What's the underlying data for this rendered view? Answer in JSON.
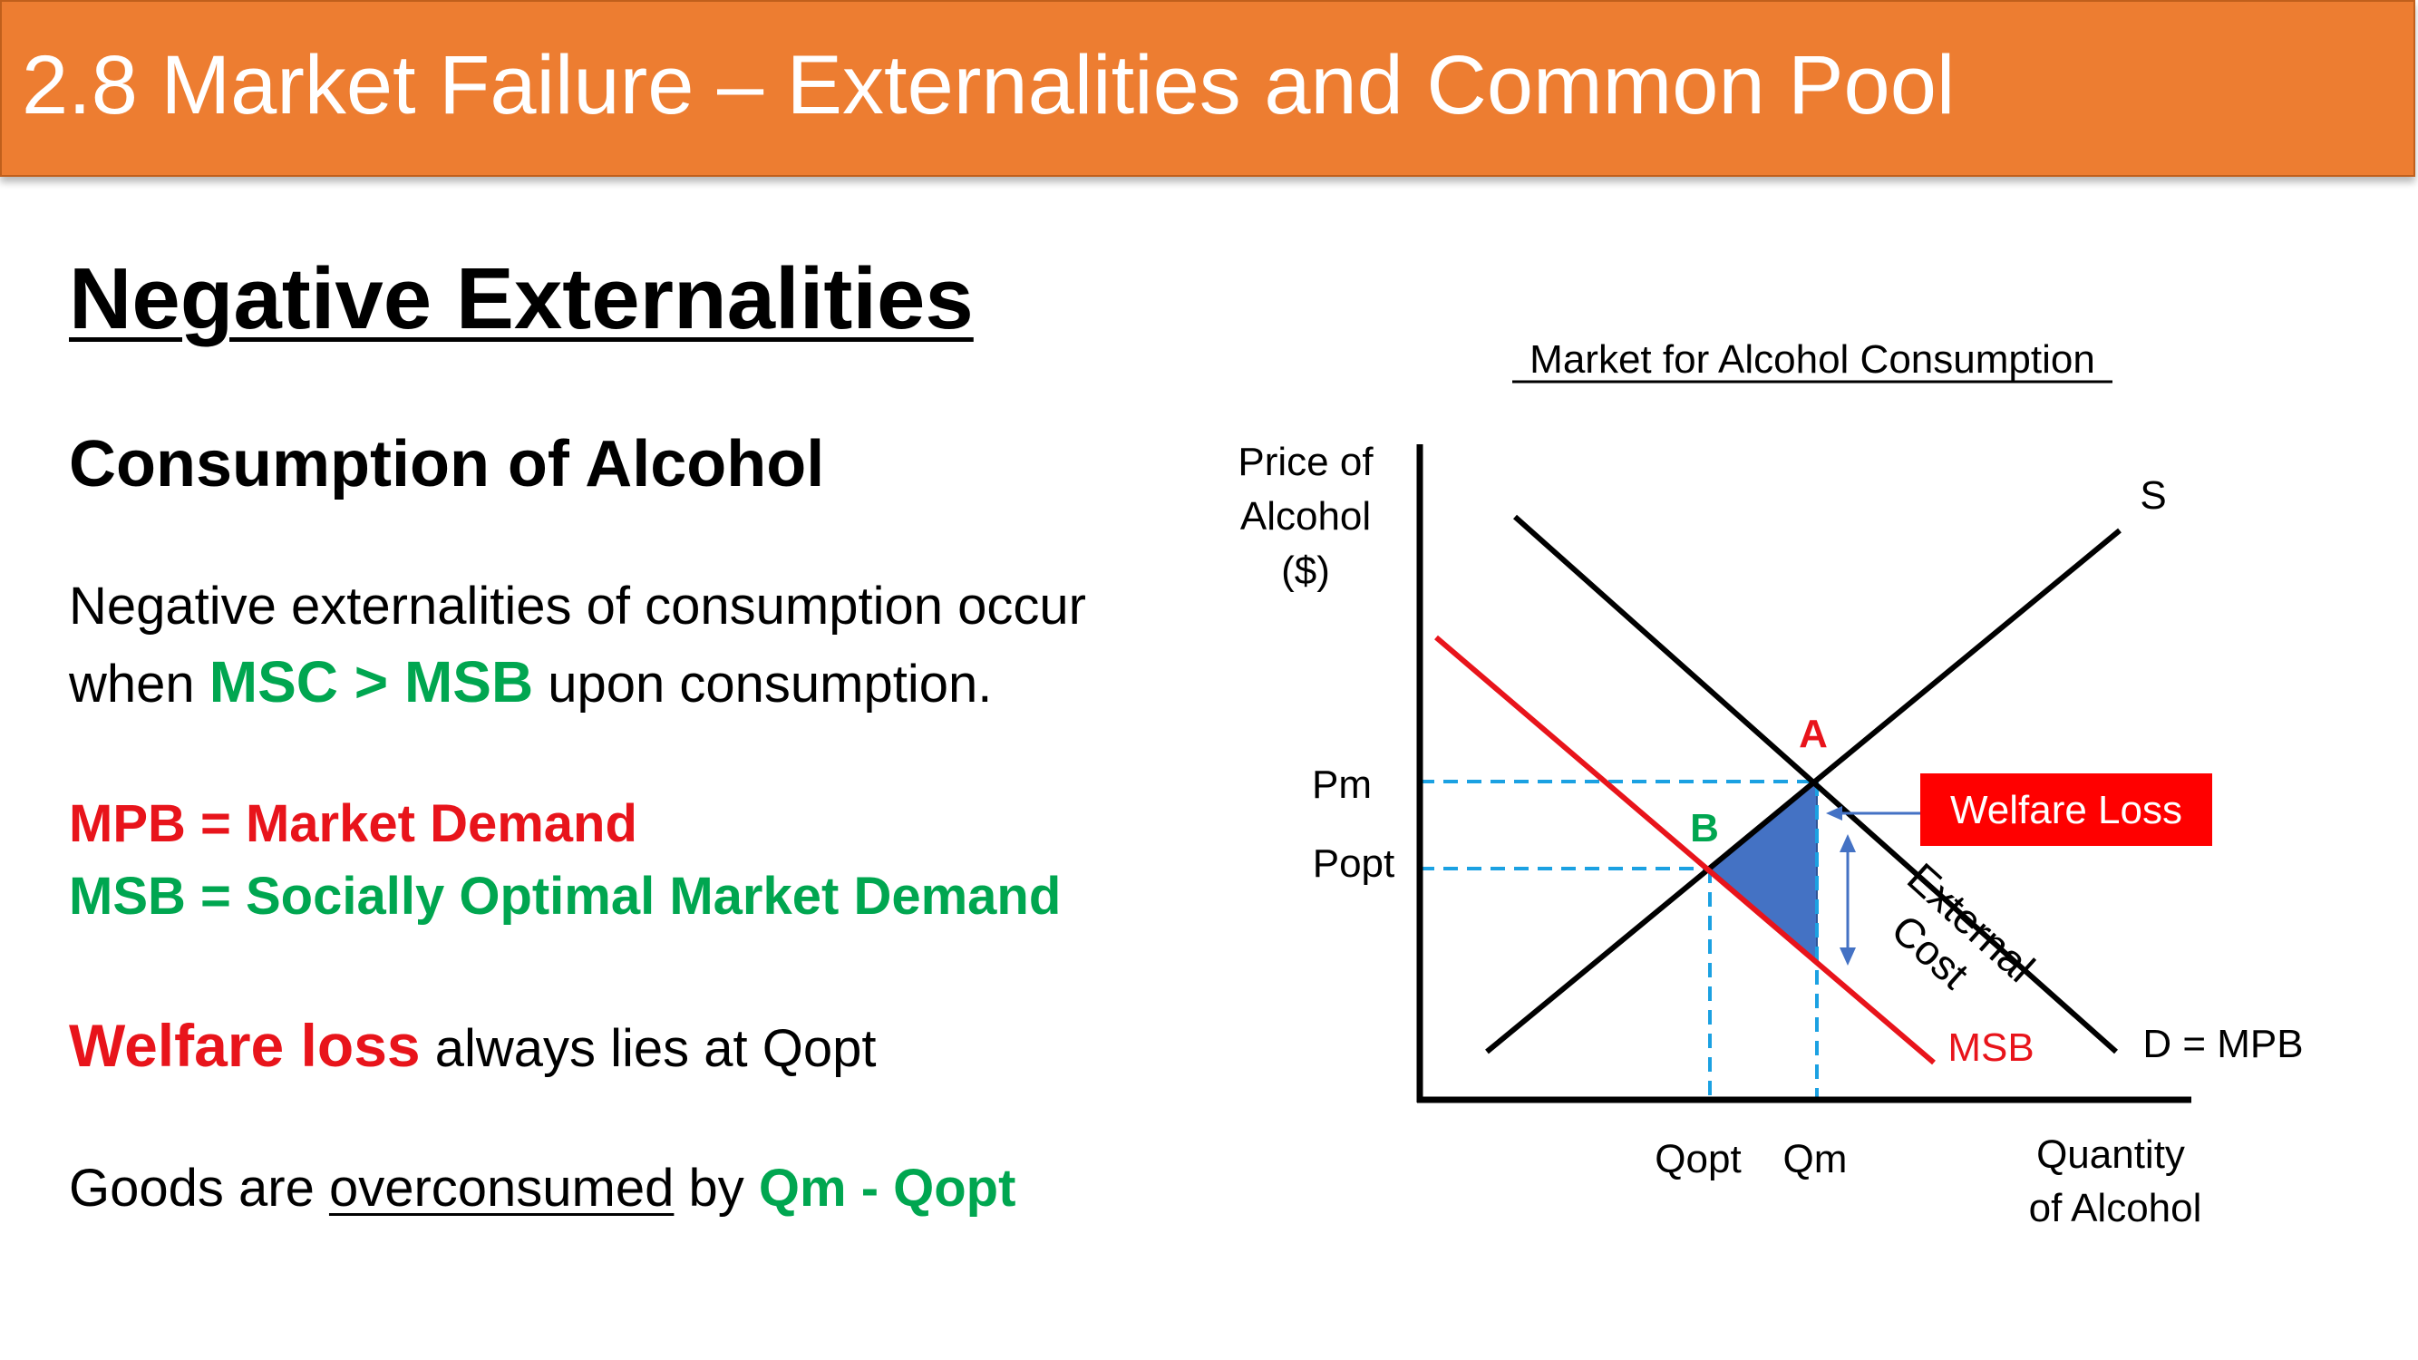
{
  "header": {
    "title": "2.8 Market Failure – Externalities and Common Pool"
  },
  "section_title": "Negative Externalities",
  "subtitle": "Consumption of Alcohol",
  "para1": {
    "line1": "Negative externalities of consumption occur",
    "line2_pre": "when ",
    "line2_highlight": "MSC > MSB",
    "line2_post": " upon consumption."
  },
  "definitions": {
    "mpb": "MPB = Market Demand",
    "msb": "MSB = Socially Optimal Market Demand"
  },
  "welfare_line": {
    "highlight": "Welfare loss",
    "rest": " always lies at Qopt"
  },
  "overconsumed_line": {
    "pre": "Goods are ",
    "underlined": "overconsumed",
    "mid": " by ",
    "highlight": "Qm - Qopt"
  },
  "diagram": {
    "title": "Market for Alcohol Consumption",
    "y_axis_label": [
      "Price of",
      "Alcohol",
      "($)"
    ],
    "x_axis_label": [
      "Quantity",
      "of Alcohol"
    ],
    "price_labels": {
      "pm": "Pm",
      "popt": "Popt"
    },
    "quantity_labels": {
      "qopt": "Qopt",
      "qm": "Qm"
    },
    "curve_labels": {
      "supply": "S",
      "demand": "D = MPB",
      "msb": "MSB"
    },
    "point_labels": {
      "a": "A",
      "b": "B"
    },
    "welfare_loss_box": "Welfare Loss",
    "external_cost_label": [
      "External",
      "Cost"
    ],
    "colors": {
      "supply": "#000000",
      "demand": "#000000",
      "msb": "#E8141B",
      "welfare_area": "#4472C4",
      "guides": "#1BA1E2",
      "welfare_box": "#FF0000",
      "point_a": "#E8141B",
      "point_b": "#00A650"
    }
  }
}
